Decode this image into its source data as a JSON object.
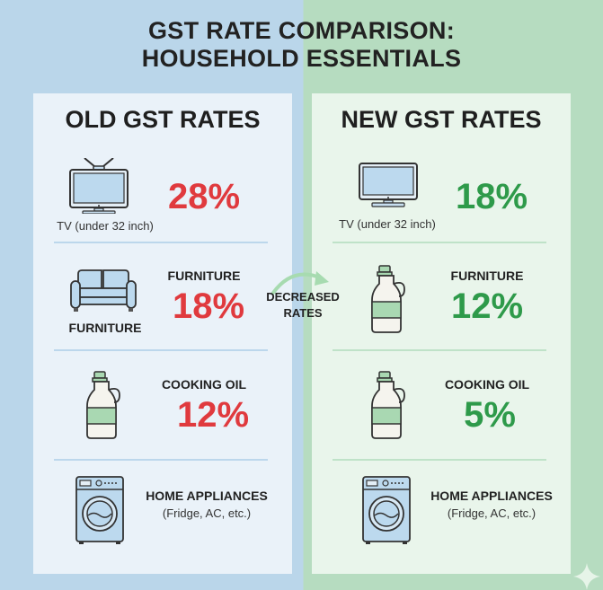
{
  "title": {
    "line1": "GST RATE COMPARISON:",
    "line2": "HOUSEHOLD ESSENTIALS"
  },
  "colors": {
    "old_rate": "#e03a3e",
    "new_rate": "#2e9a4a",
    "left_bg": "#bad6ea",
    "right_bg": "#b6dcc0"
  },
  "center_note": {
    "line1": "DECREASED",
    "line2": "RATES",
    "icon": "curved-arrow-icon"
  },
  "old": {
    "heading": "OLD GST RATES",
    "items": [
      {
        "icon": "tv-icon",
        "caption": "TV (under 32 inch)",
        "rate": "28%"
      },
      {
        "icon": "sofa-icon",
        "label": "FURNITURE",
        "caption": "FURNITURE",
        "rate": "18%"
      },
      {
        "icon": "oil-bottle-icon",
        "label": "COOKING OIL",
        "rate": "12%"
      },
      {
        "icon": "washing-machine-icon",
        "label": "HOME APPLIANCES",
        "sub": "(Fridge, AC, etc.)"
      }
    ]
  },
  "new": {
    "heading": "NEW GST RATES",
    "items": [
      {
        "icon": "tv-icon",
        "caption": "TV (under 32 inch)",
        "rate": "18%"
      },
      {
        "icon": "oil-bottle-icon",
        "label": "FURNITURE",
        "rate": "12%"
      },
      {
        "icon": "oil-bottle-icon",
        "label": "COOKING OIL",
        "rate": "5%"
      },
      {
        "icon": "washing-machine-icon",
        "label": "HOME APPLIANCES",
        "sub": "(Fridge, AC, etc.)"
      }
    ]
  }
}
